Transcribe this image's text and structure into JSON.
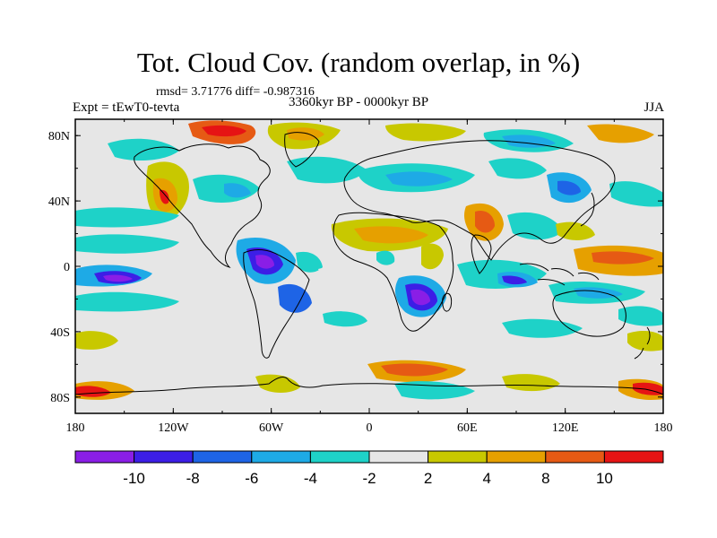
{
  "header": {
    "title": "Tot. Cloud Cov. (random overlap, in %)",
    "stats": "rmsd= 3.71776 diff= -0.987316",
    "expt": "Expt = tEwT0-tevta",
    "period": "3360kyr BP - 0000kyr BP",
    "season": "JJA"
  },
  "map": {
    "x_ticks": [
      "180",
      "120W",
      "60W",
      "0",
      "60E",
      "120E",
      "180"
    ],
    "y_ticks": [
      "80N",
      "40N",
      "0",
      "40S",
      "80S"
    ],
    "background_color": "#e6e6e6"
  },
  "colorbar": {
    "labels": [
      "-10",
      "-8",
      "-6",
      "-4",
      "-2",
      "2",
      "4",
      "8",
      "10"
    ],
    "colors": [
      "#8a1ee6",
      "#3c1ee6",
      "#1e64e6",
      "#1eaae6",
      "#1ed2c8",
      "#e6e6e6",
      "#c8c800",
      "#e6a000",
      "#e65a14",
      "#e61414"
    ]
  }
}
